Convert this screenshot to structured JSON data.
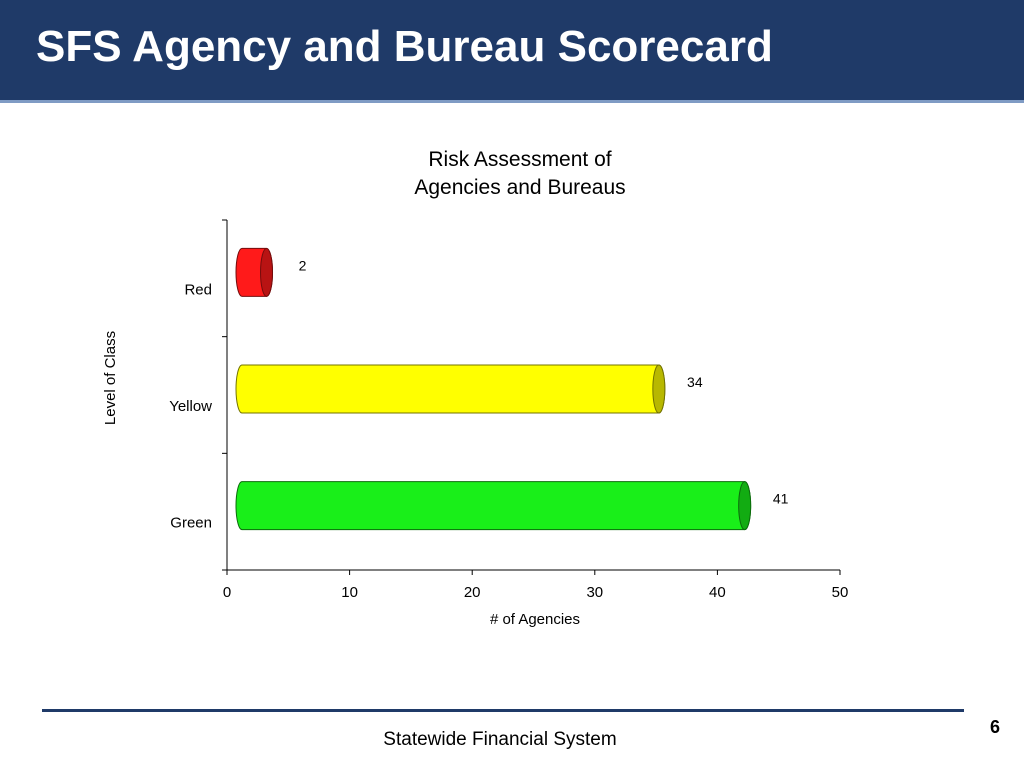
{
  "slide": {
    "title": "SFS Agency and Bureau Scorecard",
    "footer": "Statewide Financial System",
    "page_number": "6"
  },
  "theme": {
    "header_bg": "#1f3a68",
    "rule_color": "#1f3a68"
  },
  "chart_data": {
    "type": "bar",
    "orientation": "horizontal",
    "title_lines": [
      "Risk Assessment of",
      "Agencies and Bureaus"
    ],
    "xlabel": "# of Agencies",
    "ylabel": "Level of Class",
    "xlim": [
      0,
      50
    ],
    "x_ticks": [
      0,
      10,
      20,
      30,
      40,
      50
    ],
    "grid": false,
    "legend": "none",
    "categories": [
      "Red",
      "Yellow",
      "Green"
    ],
    "values": [
      2,
      34,
      41
    ],
    "data_labels": [
      "2",
      "34",
      "41"
    ],
    "colors": [
      "#ff1a1a",
      "#ffff00",
      "#19ef19"
    ]
  }
}
